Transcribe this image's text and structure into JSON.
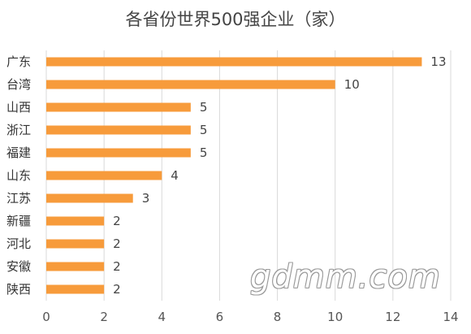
{
  "chart_data": {
    "type": "bar",
    "orientation": "horizontal",
    "title": "各省份世界500强企业（家）",
    "categories": [
      "广东",
      "台湾",
      "山西",
      "浙江",
      "福建",
      "山东",
      "江苏",
      "新疆",
      "河北",
      "安徽",
      "陕西"
    ],
    "values": [
      13,
      10,
      5,
      5,
      5,
      4,
      3,
      2,
      2,
      2,
      2
    ],
    "xlim": [
      0,
      14
    ],
    "xticks": [
      0,
      2,
      4,
      6,
      8,
      10,
      12,
      14
    ],
    "grid": true,
    "bar_color": "#f79b3b",
    "grid_color": "#d9d9d9",
    "data_labels": true
  },
  "watermark": "gdmm.com"
}
